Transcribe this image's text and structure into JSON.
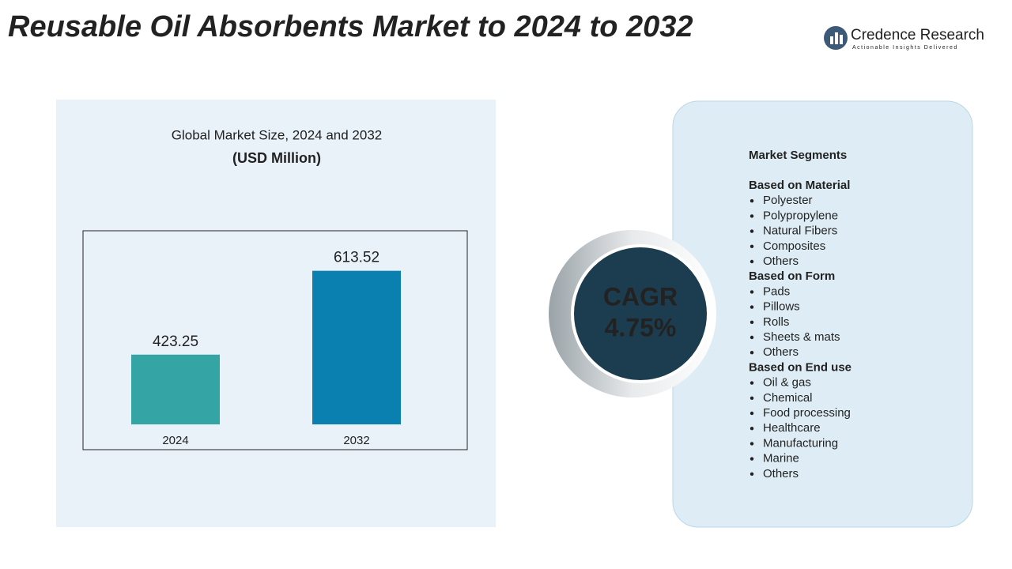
{
  "header": {
    "title": "Reusable Oil Absorbents Market to 2024 to 2032",
    "brand": "Credence Research",
    "tagline": "Actionable Insights Delivered"
  },
  "chart_data": {
    "type": "bar",
    "title": "Global Market Size, 2024 and 2032",
    "subtitle": "(USD Million)",
    "categories": [
      "2024",
      "2032"
    ],
    "values": [
      423.25,
      613.52
    ],
    "colors": [
      "#35a4a4",
      "#0a80b0"
    ],
    "ylim": [
      265,
      690
    ]
  },
  "cagr": {
    "label": "CAGR",
    "value": "4.75%"
  },
  "segments": {
    "title": "Market Segments",
    "groups": [
      {
        "heading": "Based on Material",
        "items": [
          "Polyester",
          "Polypropylene",
          "Natural Fibers",
          "Composites",
          "Others"
        ]
      },
      {
        "heading": "Based on Form",
        "items": [
          "Pads",
          "Pillows",
          "Rolls",
          "Sheets & mats",
          "Others"
        ]
      },
      {
        "heading": "Based on End use",
        "items": [
          "Oil & gas",
          "Chemical",
          "Food processing",
          "Healthcare",
          "Manufacturing",
          "Marine",
          "Others"
        ]
      }
    ]
  }
}
